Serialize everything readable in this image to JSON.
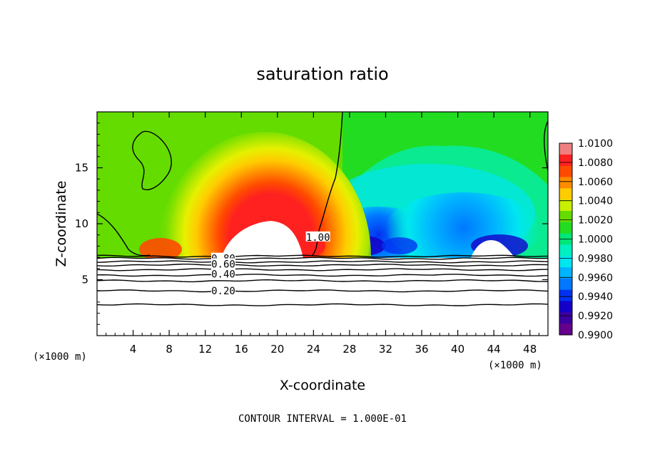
{
  "chart_data": {
    "type": "heatmap",
    "title": "saturation ratio",
    "xlabel": "X-coordinate",
    "ylabel": "Z-coordinate",
    "x_unit_left": "(×1000 m)",
    "x_unit_right": "(×1000 m)",
    "footer": "CONTOUR INTERVAL = 1.000E-01",
    "xlim": [
      0,
      50
    ],
    "ylim": [
      0,
      20
    ],
    "x_ticks": [
      4,
      8,
      12,
      16,
      20,
      24,
      28,
      32,
      36,
      40,
      44,
      48
    ],
    "x_tick_labels": [
      "4",
      "8",
      "12",
      "16",
      "20",
      "24",
      "28",
      "32",
      "36",
      "40",
      "44",
      "48"
    ],
    "y_ticks": [
      5,
      10,
      15
    ],
    "y_tick_labels": [
      "5",
      "10",
      "15"
    ],
    "colorbar": {
      "min": 0.99,
      "max": 1.01,
      "labels": [
        "1.0100",
        "1.0080",
        "1.0060",
        "1.0040",
        "1.0020",
        "1.0000",
        "0.9980",
        "0.9960",
        "0.9940",
        "0.9920",
        "0.9900"
      ],
      "colors": [
        "#f08080",
        "#ff2020",
        "#ff4a00",
        "#ff8c00",
        "#ffcc00",
        "#c8f000",
        "#64dc00",
        "#22dc22",
        "#00e678",
        "#00f0c0",
        "#00e6f0",
        "#00b4ff",
        "#0078ff",
        "#0032f0",
        "#1400c8",
        "#3c00a0",
        "#64008c"
      ]
    },
    "contour_labels": [
      {
        "text": "0.80",
        "x": 14,
        "y": 6.9
      },
      {
        "text": "0.60",
        "x": 14,
        "y": 6.4
      },
      {
        "text": "0.40",
        "x": 14,
        "y": 5.5
      },
      {
        "text": "0.20",
        "x": 14,
        "y": 4.0
      },
      {
        "text": "1.00",
        "x": 24.5,
        "y": 8.8
      }
    ],
    "flat_contour_levels": [
      2.75,
      4.0,
      4.9,
      5.4,
      5.9,
      6.3,
      6.6,
      6.9,
      7.1
    ]
  }
}
